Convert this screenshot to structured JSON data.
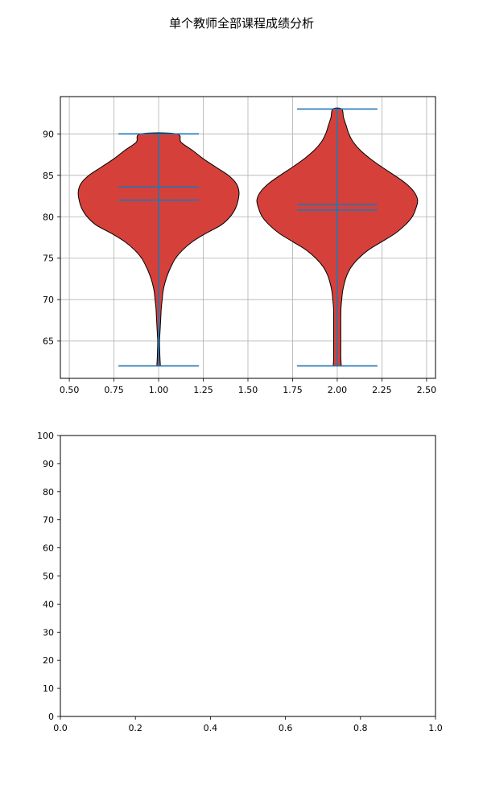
{
  "figure": {
    "title": "单个教师全部课程成绩分析"
  },
  "chart_data": [
    {
      "type": "violin",
      "title": "",
      "xlabel": "",
      "ylabel": "",
      "xlim": [
        0.45,
        2.55
      ],
      "ylim": [
        60.5,
        94.5
      ],
      "xticks": [
        0.5,
        0.75,
        1.0,
        1.25,
        1.5,
        1.75,
        2.0,
        2.25,
        2.5
      ],
      "xtick_labels": [
        "0.50",
        "0.75",
        "1.00",
        "1.25",
        "1.50",
        "1.75",
        "2.00",
        "2.25",
        "2.50"
      ],
      "yticks": [
        65,
        70,
        75,
        80,
        85,
        90
      ],
      "ytick_labels": [
        "65",
        "70",
        "75",
        "80",
        "85",
        "90"
      ],
      "grid": true,
      "colors": {
        "body": "#d6403a",
        "edge": "#000000",
        "stats": "#1f77b4",
        "grid": "#b0b0b0"
      },
      "violins": [
        {
          "position": 1,
          "min": 62,
          "max": 90,
          "mean": 83.6,
          "median": 82,
          "profile": [
            [
              62,
              0.02
            ],
            [
              63,
              0.015
            ],
            [
              64,
              0.012
            ],
            [
              65,
              0.01
            ],
            [
              66,
              0.015
            ],
            [
              67,
              0.02
            ],
            [
              68,
              0.025
            ],
            [
              69,
              0.03
            ],
            [
              70,
              0.04
            ],
            [
              71,
              0.05
            ],
            [
              72,
              0.07
            ],
            [
              73,
              0.1
            ],
            [
              74,
              0.14
            ],
            [
              75,
              0.19
            ],
            [
              76,
              0.27
            ],
            [
              77,
              0.38
            ],
            [
              78,
              0.53
            ],
            [
              79,
              0.7
            ],
            [
              80,
              0.8
            ],
            [
              81,
              0.86
            ],
            [
              82,
              0.89
            ],
            [
              83,
              0.9
            ],
            [
              84,
              0.87
            ],
            [
              85,
              0.78
            ],
            [
              86,
              0.64
            ],
            [
              87,
              0.5
            ],
            [
              88,
              0.38
            ],
            [
              89,
              0.25
            ],
            [
              90,
              0.2
            ]
          ]
        },
        {
          "position": 2,
          "min": 62,
          "max": 93,
          "mean": 81.5,
          "median": 80.8,
          "profile": [
            [
              62,
              0.045
            ],
            [
              63,
              0.04
            ],
            [
              64,
              0.04
            ],
            [
              65,
              0.04
            ],
            [
              66,
              0.04
            ],
            [
              67,
              0.04
            ],
            [
              68,
              0.04
            ],
            [
              69,
              0.042
            ],
            [
              70,
              0.05
            ],
            [
              71,
              0.06
            ],
            [
              72,
              0.08
            ],
            [
              73,
              0.11
            ],
            [
              74,
              0.16
            ],
            [
              75,
              0.24
            ],
            [
              76,
              0.35
            ],
            [
              77,
              0.5
            ],
            [
              78,
              0.65
            ],
            [
              79,
              0.76
            ],
            [
              80,
              0.84
            ],
            [
              81,
              0.88
            ],
            [
              82,
              0.9
            ],
            [
              83,
              0.86
            ],
            [
              84,
              0.77
            ],
            [
              85,
              0.64
            ],
            [
              86,
              0.5
            ],
            [
              87,
              0.37
            ],
            [
              88,
              0.26
            ],
            [
              89,
              0.18
            ],
            [
              90,
              0.13
            ],
            [
              91,
              0.1
            ],
            [
              92,
              0.07
            ],
            [
              93,
              0.05
            ]
          ]
        }
      ]
    },
    {
      "type": "empty",
      "title": "",
      "xlabel": "",
      "ylabel": "",
      "xlim": [
        0,
        1
      ],
      "ylim": [
        0,
        100
      ],
      "xticks": [
        0,
        0.2,
        0.4,
        0.6,
        0.8,
        1.0
      ],
      "xtick_labels": [
        "0.0",
        "0.2",
        "0.4",
        "0.6",
        "0.8",
        "1.0"
      ],
      "yticks": [
        0,
        10,
        20,
        30,
        40,
        50,
        60,
        70,
        80,
        90,
        100
      ],
      "ytick_labels": [
        "0",
        "10",
        "20",
        "30",
        "40",
        "50",
        "60",
        "70",
        "80",
        "90",
        "100"
      ],
      "grid": false
    }
  ]
}
